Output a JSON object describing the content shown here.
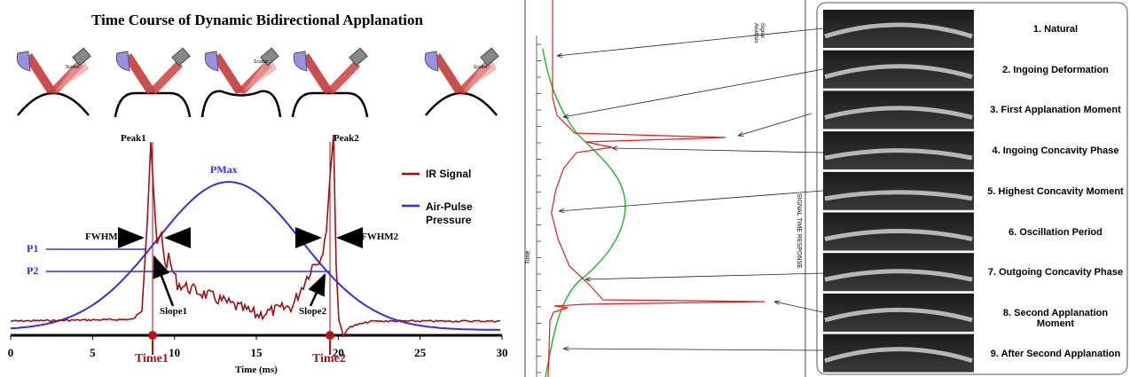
{
  "left": {
    "title": "Time Course of Dynamic Bidirectional Applanation",
    "schematic_label": "Scatter",
    "xlim": [
      0,
      30
    ],
    "xticks": [
      0,
      5,
      10,
      15,
      20,
      25,
      30
    ],
    "x_label": "Time (ms)",
    "markers": [
      "Time1",
      "Time2"
    ],
    "annotations": [
      "Peak1",
      "PMax",
      "Peak2",
      "FWHM1",
      "FWHM2",
      "Slope1",
      "Slope2"
    ],
    "levels": [
      "P1",
      "P2"
    ],
    "legend": [
      "IR Signal",
      "Air-Pulse Pressure"
    ]
  },
  "middle": {
    "corner_label": "Signal Analysis",
    "side_label": "SIGNAL TIME RESPONSE",
    "axis_label": "Time"
  },
  "right": {
    "phases": [
      "1. Natural",
      "2. Ingoing Deformation",
      "3. First Applanation Moment",
      "4. Ingoing Concavity Phase",
      "5. Highest Concavity Moment",
      "6. Oscillation Period",
      "7. Outgoing Concavity Phase",
      "8. Second Applanation Moment",
      "9. After Second Applanation"
    ]
  }
}
